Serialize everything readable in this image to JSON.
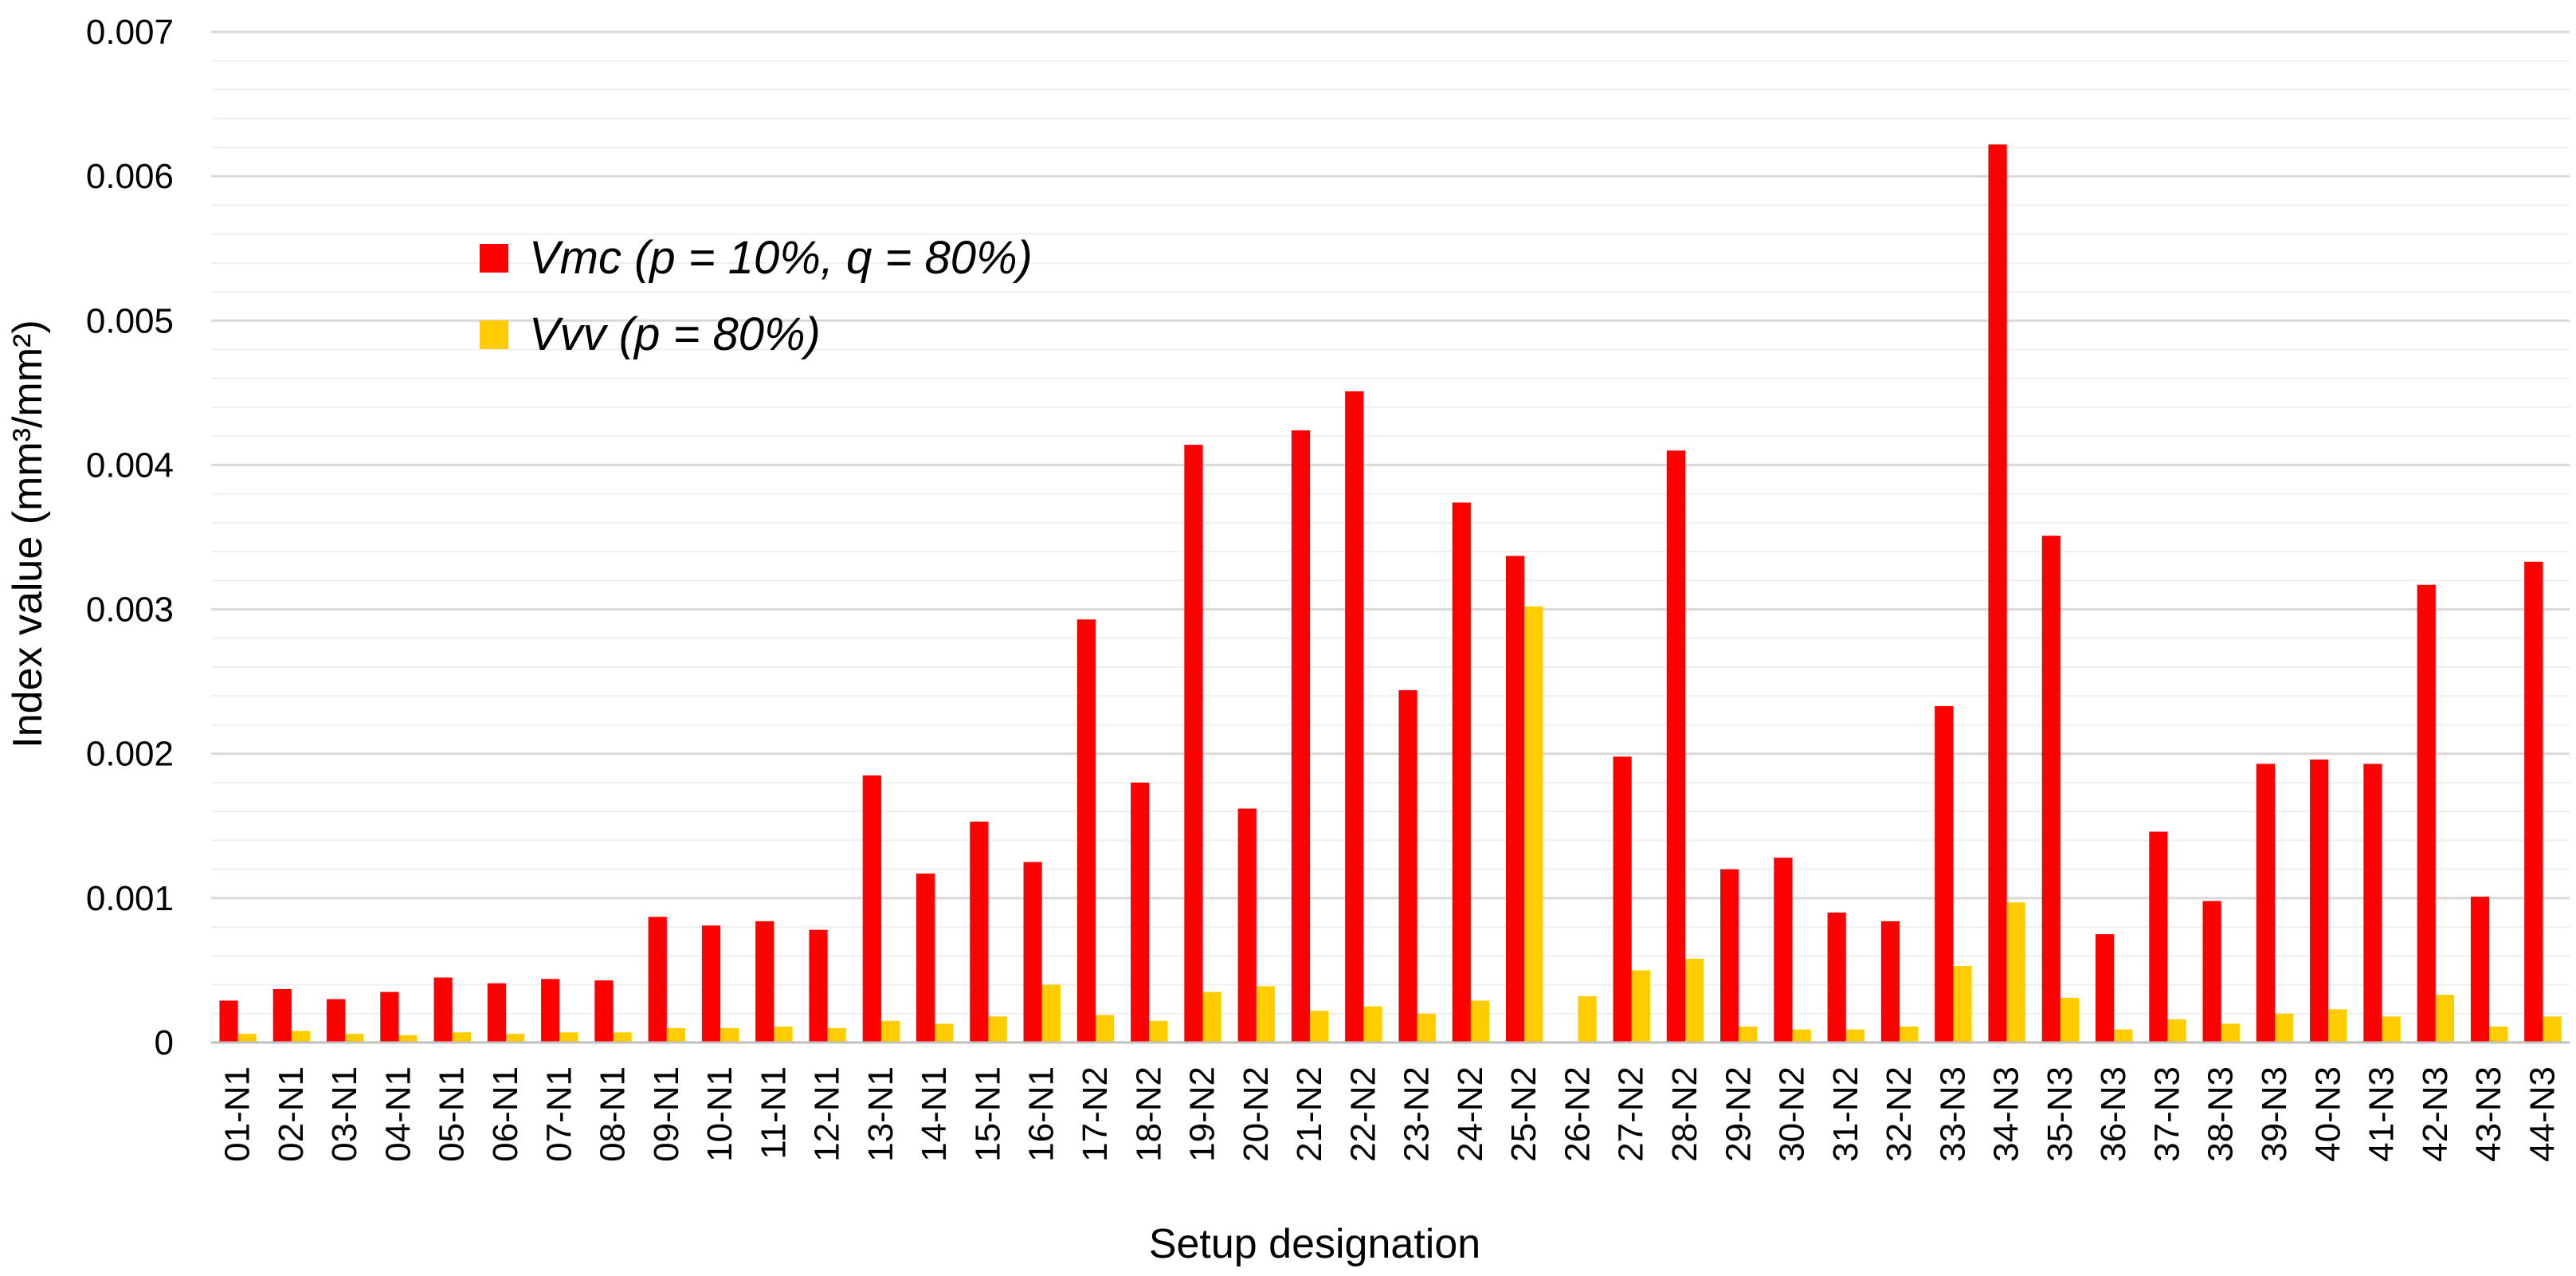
{
  "chart_data": {
    "type": "bar",
    "xlabel": "Setup designation",
    "ylabel": "Index value (mm³/mm²)",
    "ylim": [
      0,
      0.007
    ],
    "y_ticks": [
      "0",
      "0.001",
      "0.002",
      "0.003",
      "0.004",
      "0.005",
      "0.006",
      "0.007"
    ],
    "grid": true,
    "minor_grid": true,
    "legend_position": "upper-left",
    "categories": [
      "01-N1",
      "02-N1",
      "03-N1",
      "04-N1",
      "05-N1",
      "06-N1",
      "07-N1",
      "08-N1",
      "09-N1",
      "10-N1",
      "11-N1",
      "12-N1",
      "13-N1",
      "14-N1",
      "15-N1",
      "16-N1",
      "17-N2",
      "18-N2",
      "19-N2",
      "20-N2",
      "21-N2",
      "22-N2",
      "23-N2",
      "24-N2",
      "25-N2",
      "26-N2",
      "27-N2",
      "28-N2",
      "29-N2",
      "30-N2",
      "31-N2",
      "32-N2",
      "33-N3",
      "34-N3",
      "35-N3",
      "36-N3",
      "37-N3",
      "38-N3",
      "39-N3",
      "40-N3",
      "41-N3",
      "42-N3",
      "43-N3",
      "44-N3"
    ],
    "series": [
      {
        "name": "Vmc (p = 10%, q = 80%)",
        "color": "#ff0000",
        "values": [
          0.00029,
          0.00037,
          0.0003,
          0.00035,
          0.00045,
          0.00041,
          0.00044,
          0.00043,
          0.00087,
          0.00081,
          0.00084,
          0.00078,
          0.00185,
          0.00117,
          0.00153,
          0.00125,
          0.00293,
          0.0018,
          0.00414,
          0.00162,
          0.00424,
          0.00451,
          0.00244,
          0.00374,
          0.00337,
          0,
          0.00198,
          0.0041,
          0.0012,
          0.00128,
          0.0009,
          0.00084,
          0.00233,
          0.00622,
          0.00351,
          0.00075,
          0.00146,
          0.00098,
          0.00193,
          0.00196,
          0.00193,
          0.00317,
          0.00101,
          0.00333
        ]
      },
      {
        "name": "Vvv (p = 80%)",
        "color": "#ffcc00",
        "values": [
          6e-05,
          8e-05,
          6e-05,
          5e-05,
          7e-05,
          6e-05,
          7e-05,
          7e-05,
          0.0001,
          0.0001,
          0.00011,
          0.0001,
          0.00015,
          0.00013,
          0.00018,
          0.0004,
          0.00019,
          0.00015,
          0.00035,
          0.00039,
          0.00022,
          0.00025,
          0.0002,
          0.00029,
          0.00302,
          0.00032,
          0.0005,
          0.00058,
          0.00011,
          9e-05,
          9e-05,
          0.00011,
          0.00053,
          0.00097,
          0.00031,
          9e-05,
          0.00016,
          0.00013,
          0.0002,
          0.00023,
          0.00018,
          0.00033,
          0.00011,
          0.00018
        ]
      }
    ]
  }
}
